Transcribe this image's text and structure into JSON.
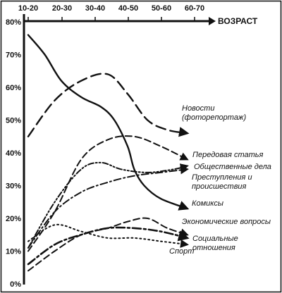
{
  "chart_data": {
    "type": "line",
    "x_label": "ВОЗРАСТ",
    "categories": [
      "10-20",
      "20-30",
      "30-40",
      "40-50",
      "50-60",
      "60-70"
    ],
    "y_ticks": [
      "80%",
      "70%",
      "60%",
      "50%",
      "40%",
      "30%",
      "20%",
      "10%",
      "0%"
    ],
    "y_range": [
      0,
      80
    ],
    "grid": false,
    "series": [
      {
        "name": "Новости (фоторепортаж)",
        "label_lines": [
          "Новости",
          "(фоторепортаж)"
        ],
        "style": "long-dash",
        "points": [
          [
            0,
            45
          ],
          [
            0.8,
            56
          ],
          [
            1.6,
            62
          ],
          [
            2.4,
            64
          ],
          [
            3.0,
            58
          ],
          [
            3.6,
            50
          ],
          [
            4.2,
            47
          ],
          [
            4.8,
            46
          ]
        ]
      },
      {
        "name": "Передовая статья",
        "label_lines": [
          "Передовая статья"
        ],
        "style": "dash",
        "points": [
          [
            0,
            10
          ],
          [
            0.8,
            22
          ],
          [
            1.6,
            38
          ],
          [
            2.4,
            44
          ],
          [
            3.2,
            45
          ],
          [
            4.0,
            42
          ],
          [
            4.8,
            38
          ]
        ]
      },
      {
        "name": "Общественные дела",
        "label_lines": [
          "Общественные дела"
        ],
        "style": "dash-dot-dot",
        "points": [
          [
            0,
            11
          ],
          [
            0.8,
            25
          ],
          [
            1.6,
            35
          ],
          [
            2.2,
            37
          ],
          [
            2.8,
            35
          ],
          [
            3.6,
            34
          ],
          [
            4.4,
            35
          ],
          [
            4.8,
            36
          ]
        ]
      },
      {
        "name": "Преступления и происшествия",
        "label_lines": [
          "Преступления и",
          "происшествия"
        ],
        "style": "dash-dot",
        "points": [
          [
            0,
            11
          ],
          [
            0.8,
            22
          ],
          [
            1.6,
            28
          ],
          [
            2.4,
            31
          ],
          [
            3.2,
            33
          ],
          [
            4.0,
            34
          ],
          [
            4.8,
            35
          ]
        ]
      },
      {
        "name": "Комиксы",
        "label_lines": [
          "Комиксы"
        ],
        "style": "solid",
        "points": [
          [
            0,
            76
          ],
          [
            0.5,
            70
          ],
          [
            1.0,
            62
          ],
          [
            1.6,
            57
          ],
          [
            2.2,
            54
          ],
          [
            2.6,
            50
          ],
          [
            3.0,
            42
          ],
          [
            3.2,
            35
          ],
          [
            3.5,
            30
          ],
          [
            4.0,
            26
          ],
          [
            4.8,
            23
          ]
        ]
      },
      {
        "name": "Экономические вопросы",
        "label_lines": [
          "Экономические вопросы"
        ],
        "style": "dash",
        "points": [
          [
            0,
            4
          ],
          [
            0.8,
            10
          ],
          [
            1.6,
            15
          ],
          [
            2.4,
            17
          ],
          [
            3.0,
            19
          ],
          [
            3.6,
            20
          ],
          [
            4.2,
            17
          ],
          [
            4.8,
            15
          ]
        ]
      },
      {
        "name": "Социальные отношения",
        "label_lines": [
          "Социальные",
          "отношения"
        ],
        "style": "dash-dot-bold",
        "points": [
          [
            0,
            6
          ],
          [
            0.8,
            12
          ],
          [
            1.6,
            15
          ],
          [
            2.4,
            17
          ],
          [
            3.2,
            17
          ],
          [
            4.0,
            16
          ],
          [
            4.8,
            14
          ]
        ]
      },
      {
        "name": "Спорт",
        "label_lines": [
          "Спорт"
        ],
        "style": "dotted",
        "points": [
          [
            0,
            13
          ],
          [
            0.8,
            18
          ],
          [
            1.6,
            16
          ],
          [
            2.4,
            14
          ],
          [
            3.2,
            14
          ],
          [
            4.0,
            13
          ],
          [
            4.8,
            12
          ]
        ]
      }
    ]
  }
}
